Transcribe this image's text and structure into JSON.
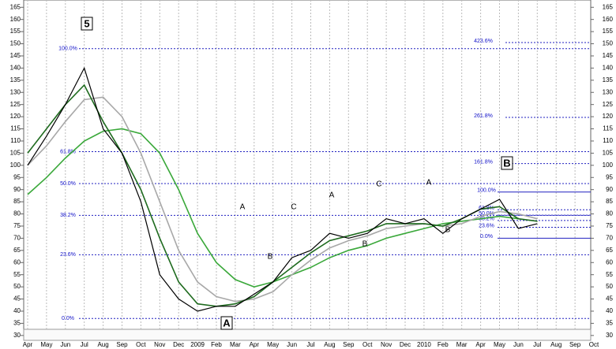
{
  "chart_data": {
    "type": "line",
    "categories": [
      "Apr",
      "May",
      "Jun",
      "Jul",
      "Aug",
      "Sep",
      "Oct",
      "Nov",
      "Dec",
      "2009",
      "Feb",
      "Mar",
      "Apr",
      "May",
      "Jun",
      "Jul",
      "Aug",
      "Sep",
      "Oct",
      "Nov",
      "Dec",
      "2010",
      "Feb",
      "Mar",
      "Apr",
      "May",
      "Jun",
      "Jul",
      "Aug",
      "Sep",
      "Oct"
    ],
    "series": [
      {
        "color": "#3aa83a",
        "values": [
          88,
          95,
          103,
          110,
          114,
          115,
          113,
          105,
          90,
          72,
          60,
          53,
          50,
          52,
          55,
          58,
          62,
          65,
          67,
          70,
          72,
          74,
          76,
          77,
          78,
          79,
          78,
          null,
          null,
          null,
          null
        ]
      },
      {
        "color": "#a8a8a8",
        "values": [
          100,
          108,
          118,
          127,
          128,
          120,
          105,
          85,
          65,
          52,
          46,
          44,
          45,
          48,
          55,
          61,
          66,
          69,
          71,
          74,
          75,
          76,
          75,
          76,
          79,
          81,
          80,
          78,
          null,
          null,
          null
        ]
      },
      {
        "color": "#1f6b1f",
        "values": [
          105,
          115,
          125,
          133,
          118,
          105,
          90,
          70,
          52,
          43,
          42,
          43,
          46,
          52,
          58,
          64,
          69,
          71,
          73,
          76,
          76,
          76,
          75,
          78,
          82,
          83,
          78,
          77,
          null,
          null,
          null
        ]
      },
      {
        "color": "#000000",
        "values": [
          100,
          112,
          125,
          140,
          115,
          105,
          85,
          55,
          45,
          40,
          42,
          42,
          47,
          52,
          62,
          65,
          72,
          70,
          72,
          78,
          76,
          78,
          72,
          78,
          82,
          86,
          74,
          76,
          null,
          null,
          null
        ]
      }
    ],
    "ylim": [
      28,
      168
    ],
    "yticks": [
      30,
      35,
      40,
      45,
      50,
      55,
      60,
      65,
      70,
      75,
      80,
      85,
      90,
      95,
      100,
      105,
      110,
      115,
      120,
      125,
      130,
      135,
      140,
      145,
      150,
      155,
      160,
      165
    ],
    "grid": true,
    "fib_retracement": [
      {
        "value": 148,
        "label": "100.0%"
      },
      {
        "value": 105.6,
        "label": "61.8%"
      },
      {
        "value": 92.5,
        "label": "50.0%"
      },
      {
        "value": 79.4,
        "label": "38.2%"
      },
      {
        "value": 63.2,
        "label": "23.6%"
      },
      {
        "value": 37,
        "label": "0.0%"
      }
    ],
    "fib_extension": [
      {
        "value": 150.5,
        "label": "423.6%"
      },
      {
        "value": 119.7,
        "label": "261.8%"
      },
      {
        "value": 100.7,
        "label": "161.8%"
      },
      {
        "value": 89,
        "label": "100.0%"
      },
      {
        "value": 81.7,
        "label": "61.8%"
      },
      {
        "value": 79.5,
        "label": "50.0%"
      },
      {
        "value": 77.3,
        "label": "38.2%"
      },
      {
        "value": 74.5,
        "label": "23.6%"
      },
      {
        "value": 70,
        "label": "0.0%"
      }
    ],
    "annotations": [
      "5",
      "A",
      "B",
      "A",
      "B",
      "C",
      "A",
      "B",
      "C",
      "A",
      "B"
    ]
  }
}
